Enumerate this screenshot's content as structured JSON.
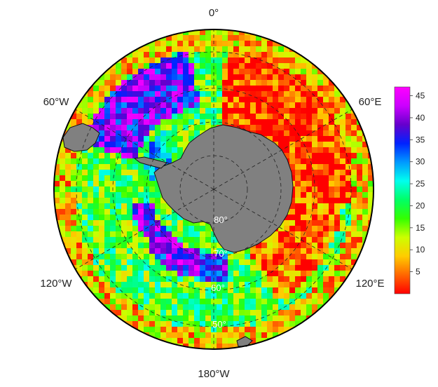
{
  "map": {
    "projection": "south-polar-stereographic",
    "longitude_labels": [
      {
        "lon": 0,
        "text": "0°"
      },
      {
        "lon": 60,
        "text": "60°E"
      },
      {
        "lon": 120,
        "text": "120°E"
      },
      {
        "lon": 180,
        "text": "180°W"
      },
      {
        "lon": -120,
        "text": "120°W"
      },
      {
        "lon": -60,
        "text": "60°W"
      }
    ],
    "latitude_labels": [
      {
        "lat": -80,
        "text": "80°"
      },
      {
        "lat": -70,
        "text": "70°"
      },
      {
        "lat": -60,
        "text": "60°"
      },
      {
        "lat": -50,
        "text": "50°"
      }
    ],
    "graticule_latitudes": [
      -80,
      -70,
      -60,
      -50
    ],
    "graticule_longitude_step": 60,
    "land_color": "#808080",
    "coastline_color": "#111111",
    "gridline_style": "dashed"
  },
  "colorbar": {
    "ticks": [
      "5",
      "10",
      "15",
      "20",
      "25",
      "30",
      "35",
      "40",
      "45"
    ],
    "tick_values": [
      5,
      10,
      15,
      20,
      25,
      30,
      35,
      40,
      45
    ],
    "min": 0,
    "max": 47,
    "colors": [
      "#ff0000",
      "#ff6600",
      "#ffcc00",
      "#ccff00",
      "#33ff00",
      "#00ff66",
      "#00ffee",
      "#0099ff",
      "#0022ff",
      "#6600cc",
      "#cc00ff",
      "#ff00ff"
    ]
  }
}
